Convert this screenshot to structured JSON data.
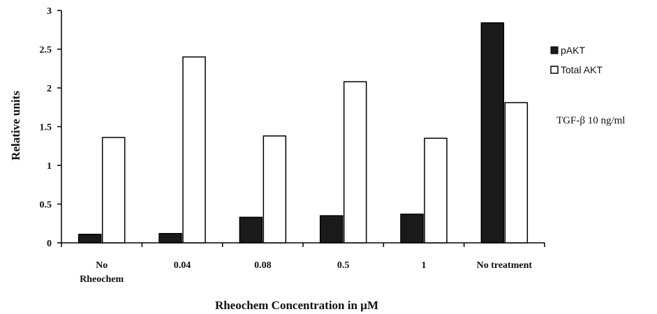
{
  "chart_data": {
    "type": "bar",
    "categories": [
      [
        "No",
        "Rheochem"
      ],
      [
        "0.04"
      ],
      [
        "0.08"
      ],
      [
        "0.5"
      ],
      [
        "1"
      ],
      [
        "No treatment"
      ]
    ],
    "series": [
      {
        "name": "pAKT",
        "color": "#1a1a1a",
        "values": [
          0.11,
          0.12,
          0.33,
          0.35,
          0.37,
          2.84
        ]
      },
      {
        "name": "Total AKT",
        "color": "#ffffff",
        "values": [
          1.36,
          2.4,
          1.38,
          2.08,
          1.35,
          1.81
        ]
      }
    ],
    "ylabel": "Relative units",
    "xlabel": "Rheochem Concentration in µM",
    "ylim": [
      0,
      3
    ],
    "yticks": [
      "0",
      "0.5",
      "1",
      "1.5",
      "2",
      "2.5",
      "3"
    ],
    "annotation": "TGF-β 10 ng/ml",
    "grid": false,
    "legend_position": "right"
  }
}
